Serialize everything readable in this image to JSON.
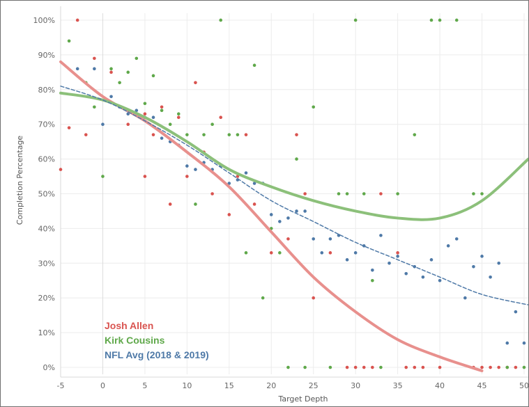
{
  "chart_data": {
    "type": "scatter",
    "xlabel": "Target Depth",
    "ylabel": "Completion Percentage",
    "xlim": [
      -5,
      50.5
    ],
    "ylim": [
      -0.02,
      1.02
    ],
    "x_ticks": [
      -5,
      0,
      5,
      10,
      15,
      20,
      25,
      30,
      35,
      40,
      45,
      50
    ],
    "x_tick_labels": [
      "-5",
      "0",
      "5",
      "10",
      "15",
      "20",
      "25",
      "30",
      "35",
      "40",
      "45",
      "50"
    ],
    "y_ticks": [
      0,
      0.1,
      0.2,
      0.3,
      0.4,
      0.5,
      0.6,
      0.7,
      0.8,
      0.9,
      1.0
    ],
    "y_tick_labels": [
      "0%",
      "10%",
      "20%",
      "30%",
      "40%",
      "50%",
      "60%",
      "70%",
      "80%",
      "90%",
      "100%"
    ],
    "grid": true,
    "legend_position": "bottom-left",
    "series": [
      {
        "name": "Josh Allen",
        "color": "#d9534f",
        "line_color": "#e8908d",
        "trend": "polynomial",
        "trend_x": [
          -5,
          0,
          5,
          10,
          15,
          20,
          25,
          30,
          35,
          40,
          45
        ],
        "trend_y": [
          0.88,
          0.78,
          0.71,
          0.62,
          0.52,
          0.39,
          0.26,
          0.16,
          0.08,
          0.03,
          -0.01
        ],
        "x": [
          -5,
          -3,
          -4,
          -2,
          -1,
          1,
          2,
          3,
          5,
          5,
          6,
          7,
          8,
          9,
          10,
          11,
          12,
          13,
          14,
          15,
          16,
          17,
          18,
          20,
          22,
          23,
          24,
          25,
          27,
          29,
          30,
          31,
          32,
          33,
          35,
          36,
          37,
          38,
          40,
          44,
          45,
          46,
          47,
          48,
          49
        ],
        "y": [
          0.57,
          1.0,
          0.69,
          0.67,
          0.89,
          0.85,
          0.75,
          0.7,
          0.73,
          0.55,
          0.67,
          0.75,
          0.47,
          0.72,
          0.55,
          0.82,
          0.62,
          0.5,
          0.72,
          0.44,
          0.55,
          0.67,
          0.47,
          0.33,
          0.37,
          0.67,
          0.5,
          0.2,
          0.33,
          0.0,
          0.0,
          0.0,
          0.0,
          0.5,
          0.33,
          0.0,
          0.0,
          0.0,
          0.0,
          0.0,
          0.0,
          0.0,
          0.0,
          0.0,
          0.0
        ]
      },
      {
        "name": "Kirk Cousins",
        "color": "#5fa84a",
        "line_color": "#8cc07a",
        "trend": "polynomial",
        "trend_x": [
          -5,
          0,
          5,
          10,
          15,
          20,
          25,
          30,
          35,
          40,
          45,
          50.5
        ],
        "trend_y": [
          0.79,
          0.77,
          0.72,
          0.65,
          0.57,
          0.52,
          0.48,
          0.45,
          0.43,
          0.43,
          0.48,
          0.6
        ],
        "x": [
          -4,
          -2,
          -1,
          0,
          1,
          2,
          3,
          4,
          5,
          6,
          7,
          8,
          9,
          10,
          11,
          12,
          13,
          14,
          15,
          16,
          17,
          18,
          19,
          20,
          21,
          22,
          23,
          24,
          25,
          27,
          28,
          29,
          30,
          31,
          32,
          33,
          35,
          37,
          39,
          40,
          42,
          44,
          45,
          48,
          50
        ],
        "y": [
          0.94,
          0.82,
          0.75,
          0.55,
          0.86,
          0.82,
          0.85,
          0.89,
          0.76,
          0.84,
          0.74,
          0.7,
          0.73,
          0.67,
          0.47,
          0.67,
          0.7,
          1.0,
          0.67,
          0.67,
          0.33,
          0.87,
          0.2,
          0.4,
          0.33,
          0.0,
          0.6,
          0.0,
          0.75,
          0.0,
          0.5,
          0.5,
          1.0,
          0.5,
          0.25,
          0.0,
          0.5,
          0.67,
          1.0,
          1.0,
          1.0,
          0.5,
          0.5,
          0.0,
          0.0
        ]
      },
      {
        "name": "NFL Avg (2018 & 2019)",
        "color": "#4e79a7",
        "line_color": "#4e79a7",
        "trend": "polynomial-dashed",
        "trend_x": [
          -5,
          0,
          5,
          10,
          15,
          20,
          25,
          30,
          35,
          40,
          45,
          50.5
        ],
        "trend_y": [
          0.81,
          0.77,
          0.71,
          0.64,
          0.56,
          0.48,
          0.42,
          0.36,
          0.31,
          0.26,
          0.21,
          0.18
        ],
        "x": [
          -3,
          -1,
          0,
          1,
          2,
          3,
          4,
          5,
          6,
          7,
          8,
          9,
          10,
          11,
          12,
          13,
          14,
          15,
          16,
          17,
          18,
          19,
          20,
          21,
          22,
          23,
          24,
          25,
          26,
          27,
          28,
          29,
          30,
          31,
          32,
          33,
          34,
          35,
          36,
          37,
          38,
          39,
          40,
          41,
          42,
          43,
          44,
          45,
          46,
          47,
          48,
          49,
          50
        ],
        "y": [
          0.86,
          0.86,
          0.7,
          0.78,
          0.75,
          0.73,
          0.74,
          0.72,
          0.72,
          0.66,
          0.65,
          0.64,
          0.58,
          0.57,
          0.59,
          0.57,
          0.58,
          0.53,
          0.54,
          0.56,
          0.53,
          0.53,
          0.44,
          0.42,
          0.43,
          0.45,
          0.45,
          0.37,
          0.33,
          0.37,
          0.38,
          0.31,
          0.33,
          0.35,
          0.28,
          0.38,
          0.3,
          0.32,
          0.27,
          0.29,
          0.26,
          0.31,
          0.25,
          0.35,
          0.37,
          0.2,
          0.29,
          0.32,
          0.26,
          0.3,
          0.07,
          0.16,
          0.07
        ]
      }
    ]
  }
}
